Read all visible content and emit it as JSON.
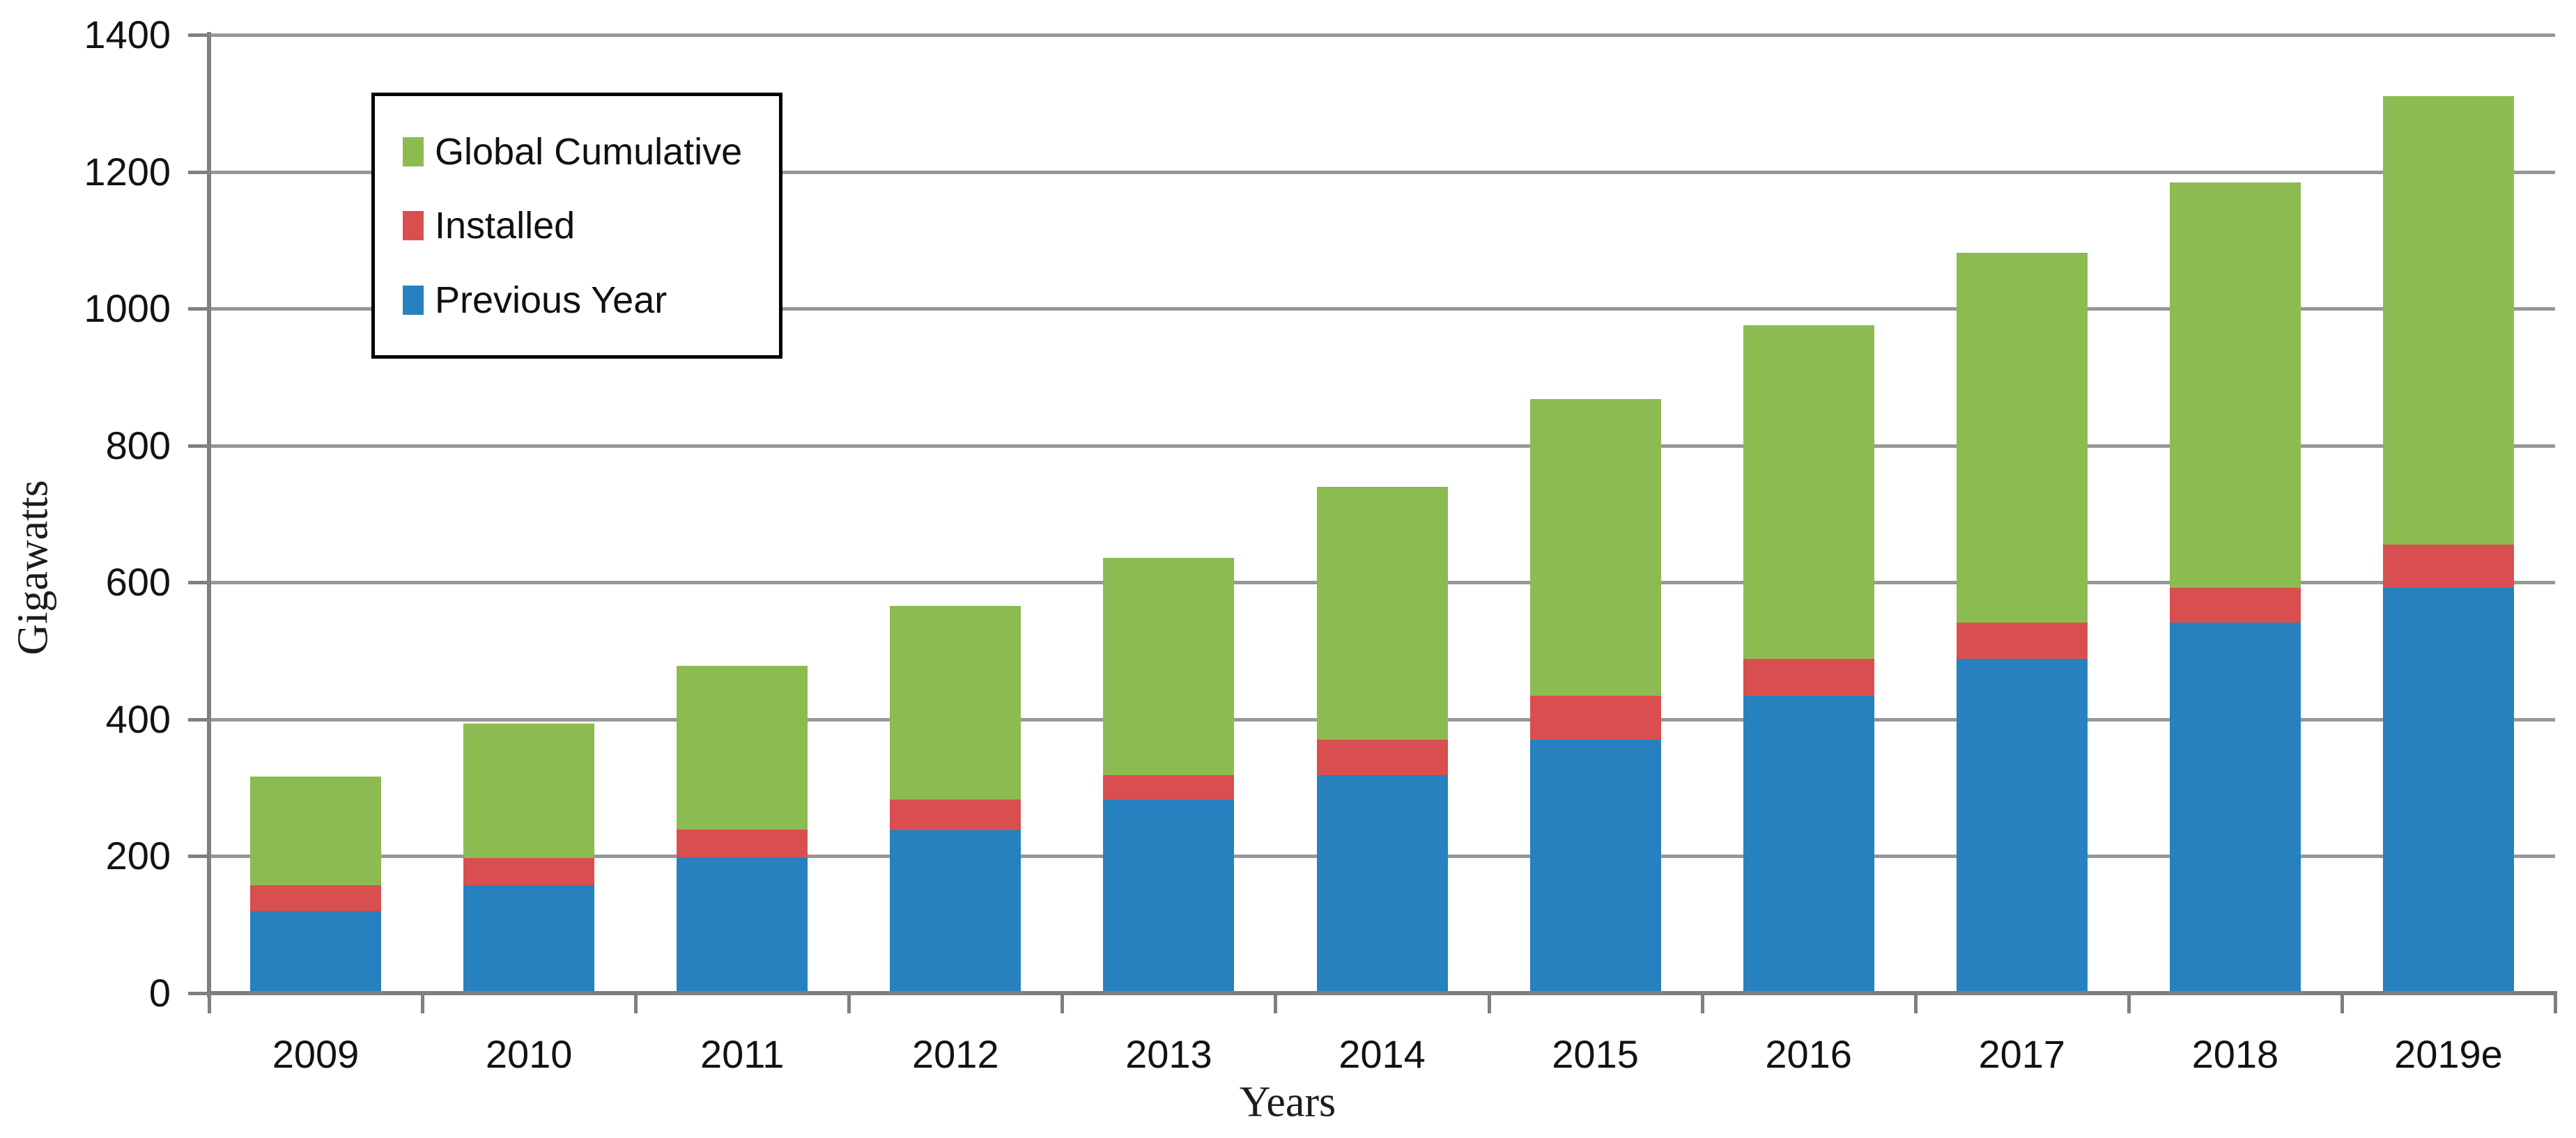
{
  "chart_data": {
    "type": "bar",
    "stacked": true,
    "title": "",
    "xlabel": "Years",
    "ylabel": "Gigawatts",
    "categories": [
      "2009",
      "2010",
      "2011",
      "2012",
      "2013",
      "2014",
      "2015",
      "2016",
      "2017",
      "2018",
      "2019e"
    ],
    "series": [
      {
        "name": "Previous Year",
        "color": "#2681BE",
        "values": [
          120,
          158,
          198,
          238,
          283,
          318,
          370,
          434,
          488,
          541,
          592
        ]
      },
      {
        "name": "Installed",
        "color": "#D94F4F",
        "values": [
          38,
          39,
          41,
          45,
          35,
          52,
          64,
          54,
          53,
          51,
          63
        ]
      },
      {
        "name": "Global Cumulative",
        "color": "#8CBB52",
        "values": [
          158,
          197,
          239,
          283,
          318,
          370,
          434,
          488,
          541,
          592,
          655
        ]
      }
    ],
    "y_axis": {
      "min": 0,
      "max": 1400,
      "tick_interval": 200,
      "tick_labels": [
        "0",
        "200",
        "400",
        "600",
        "800",
        "1000",
        "1200",
        "1400"
      ]
    },
    "x_axis": {
      "tick_labels": [
        "2009",
        "2010",
        "2011",
        "2012",
        "2013",
        "2014",
        "2015",
        "2016",
        "2017",
        "2018",
        "2019e"
      ]
    },
    "legend": {
      "position": "top-left",
      "entries": [
        "Global Cumulative",
        "Installed",
        "Previous Year"
      ]
    },
    "grid": true,
    "colors": {
      "background": "#FFFFFF",
      "gridline": "#979797",
      "axis": "#7F7F7F",
      "text": "#121212",
      "legend_border": "#000000"
    }
  }
}
